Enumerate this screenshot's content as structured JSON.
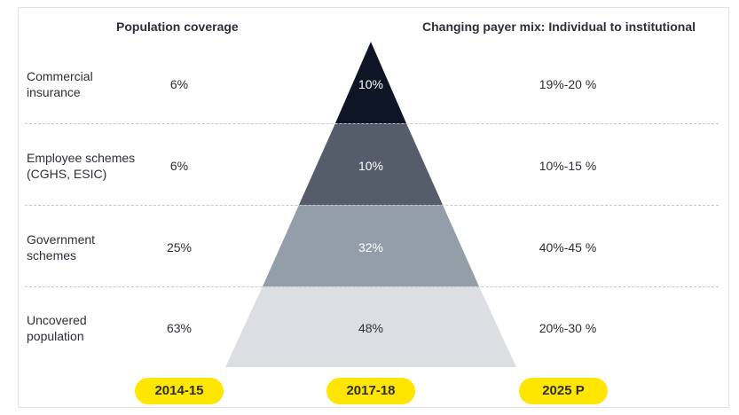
{
  "headers": {
    "coverage": "Population coverage",
    "mix": "Changing payer mix: Individual to institutional"
  },
  "rows": [
    {
      "label_line1": "Commercial",
      "label_line2": "insurance",
      "coverage": "6%",
      "share_2017": "10%",
      "share_2025": "19%-20 %"
    },
    {
      "label_line1": "Employee schemes",
      "label_line2": "(CGHS, ESIC)",
      "coverage": "6%",
      "share_2017": "10%",
      "share_2025": "10%-15 %"
    },
    {
      "label_line1": "Government",
      "label_line2": "schemes",
      "coverage": "25%",
      "share_2017": "32%",
      "share_2025": "40%-45 %"
    },
    {
      "label_line1": "Uncovered",
      "label_line2": "population",
      "coverage": "63%",
      "share_2017": "48%",
      "share_2025": "20%-30 %"
    }
  ],
  "years": [
    "2014-15",
    "2017-18",
    "2025 P"
  ],
  "colors": {
    "tier1": "#0e1626",
    "tier2": "#545d69",
    "tier3": "#939ea8",
    "tier4": "#dcdee2",
    "pill": "#ffe600"
  }
}
